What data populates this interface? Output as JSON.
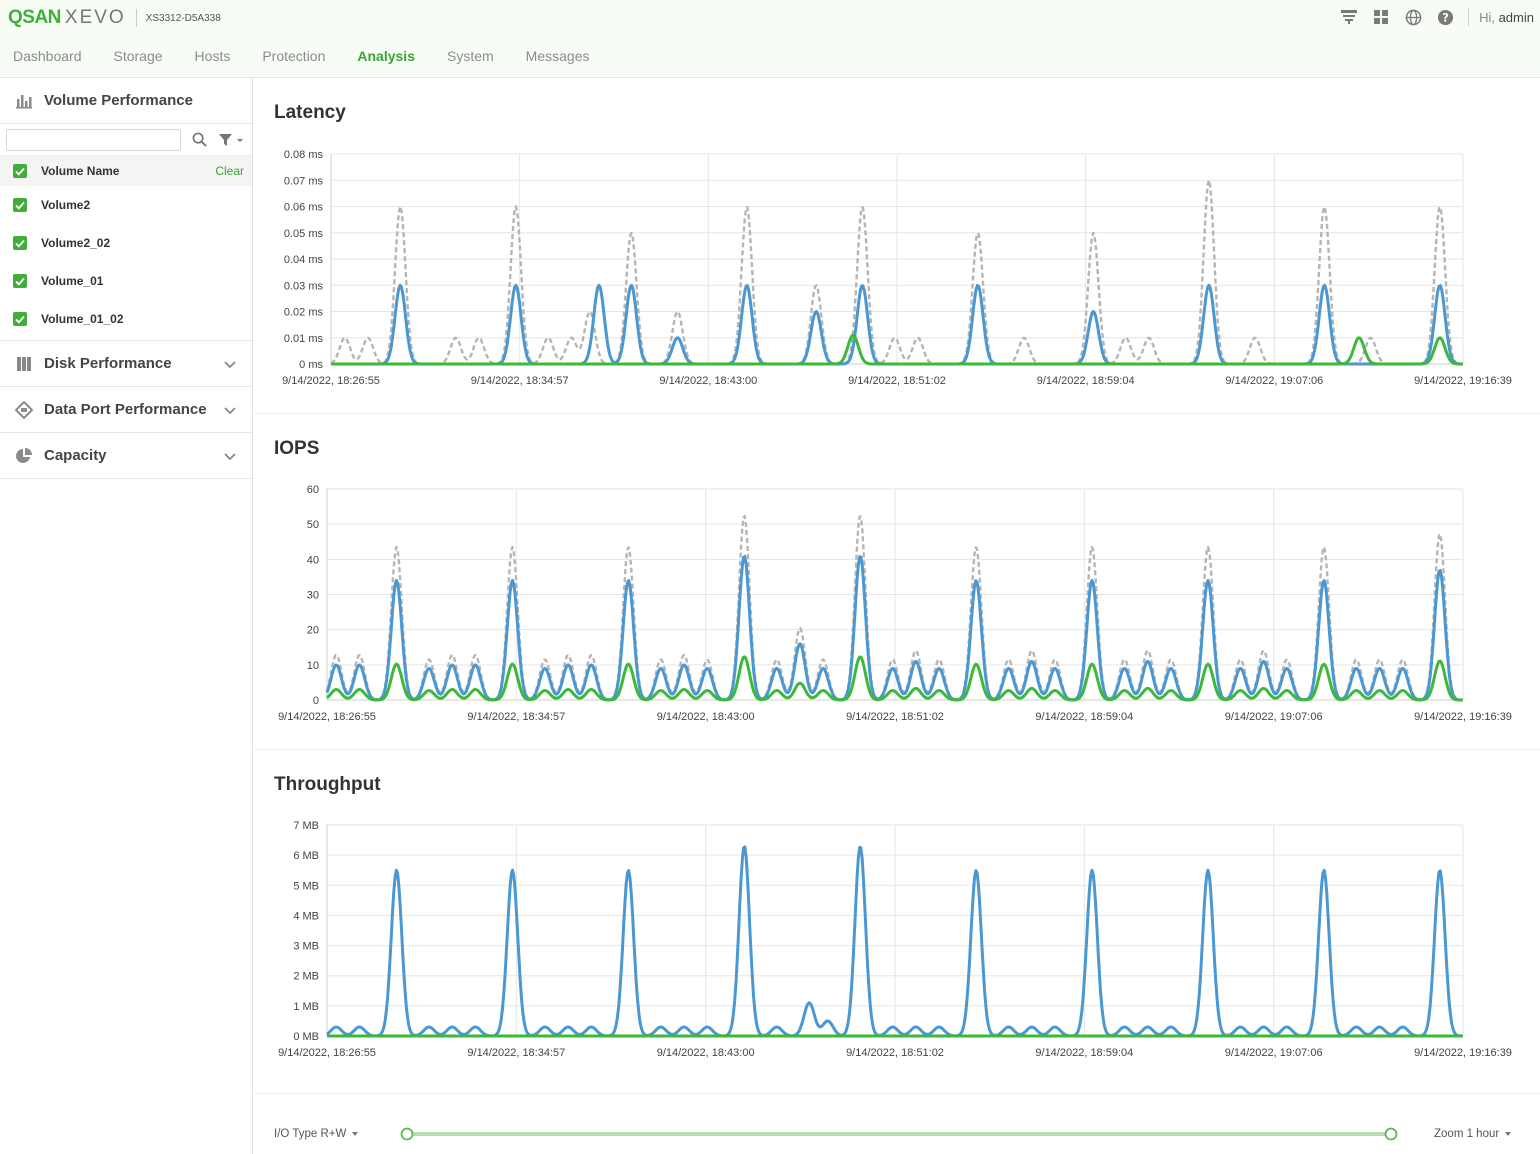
{
  "header": {
    "brand_primary": "QSAN",
    "brand_secondary": "XEVO",
    "model": "XS3312-D5A338",
    "greeting_prefix": "Hi,",
    "user": "admin",
    "icons": [
      "network-icon",
      "grid-icon",
      "globe-icon",
      "help-icon"
    ]
  },
  "nav": {
    "items": [
      "Dashboard",
      "Storage",
      "Hosts",
      "Protection",
      "Analysis",
      "System",
      "Messages"
    ],
    "active": "Analysis"
  },
  "sidebar": {
    "volume_section": {
      "title": "Volume Performance",
      "search_placeholder": "",
      "header_label": "Volume Name",
      "clear_label": "Clear",
      "volumes": [
        "Volume2",
        "Volume2_02",
        "Volume_01",
        "Volume_01_02"
      ]
    },
    "sections": [
      {
        "title": "Disk Performance",
        "icon": "disk-icon"
      },
      {
        "title": "Data Port Performance",
        "icon": "data-port-icon"
      },
      {
        "title": "Capacity",
        "icon": "pie-chart-icon"
      }
    ]
  },
  "footer": {
    "io_type": "I/O Type R+W",
    "zoom": "Zoom 1 hour",
    "range": [
      0,
      1
    ]
  },
  "colors": {
    "accent": "#3aa535",
    "series_gray": "#b5b5b5",
    "series_blue": "#4a97d2",
    "series_green": "#3cb83a"
  },
  "chart_data": [
    {
      "type": "line",
      "title": "Latency",
      "x_tick_labels": [
        "9/14/2022, 18:26:55",
        "9/14/2022, 18:34:57",
        "9/14/2022, 18:43:00",
        "9/14/2022, 18:51:02",
        "9/14/2022, 18:59:04",
        "9/14/2022, 19:07:06",
        "9/14/2022, 19:16:39"
      ],
      "y_tick_labels": [
        "0 ms",
        "0.01 ms",
        "0.02 ms",
        "0.03 ms",
        "0.04 ms",
        "0.05 ms",
        "0.06 ms",
        "0.07 ms",
        "0.08 ms"
      ],
      "ylim": [
        0,
        0.08
      ],
      "xlim": [
        0,
        49
      ],
      "grid": true,
      "series": [
        {
          "style": "dashed",
          "color": "#b5b5b5",
          "peaks": [
            [
              0.6,
              0.01
            ],
            [
              1.6,
              0.01
            ],
            [
              3,
              0.06
            ],
            [
              5.4,
              0.01
            ],
            [
              6.4,
              0.01
            ],
            [
              8,
              0.06
            ],
            [
              9.4,
              0.01
            ],
            [
              10.4,
              0.01
            ],
            [
              11.2,
              0.02
            ],
            [
              13,
              0.05
            ],
            [
              15,
              0.02
            ],
            [
              18,
              0.06
            ],
            [
              21,
              0.03
            ],
            [
              23,
              0.06
            ],
            [
              24.4,
              0.01
            ],
            [
              25.4,
              0.01
            ],
            [
              28,
              0.05
            ],
            [
              30,
              0.01
            ],
            [
              33,
              0.05
            ],
            [
              34.4,
              0.01
            ],
            [
              35.4,
              0.01
            ],
            [
              38,
              0.07
            ],
            [
              40,
              0.01
            ],
            [
              43,
              0.06
            ],
            [
              45,
              0.01
            ],
            [
              48,
              0.06
            ]
          ]
        },
        {
          "style": "solid",
          "color": "#4a97d2",
          "peaks": [
            [
              3,
              0.03
            ],
            [
              8,
              0.03
            ],
            [
              11.6,
              0.03
            ],
            [
              13,
              0.03
            ],
            [
              15,
              0.01
            ],
            [
              18,
              0.03
            ],
            [
              21,
              0.02
            ],
            [
              23,
              0.03
            ],
            [
              28,
              0.03
            ],
            [
              33,
              0.02
            ],
            [
              38,
              0.03
            ],
            [
              43,
              0.03
            ],
            [
              48,
              0.03
            ]
          ]
        },
        {
          "style": "solid",
          "color": "#3cb83a",
          "peaks": [
            [
              22.6,
              0.011
            ],
            [
              44.5,
              0.01
            ],
            [
              48,
              0.01
            ]
          ]
        }
      ]
    },
    {
      "type": "line",
      "title": "IOPS",
      "x_tick_labels": [
        "9/14/2022, 18:26:55",
        "9/14/2022, 18:34:57",
        "9/14/2022, 18:43:00",
        "9/14/2022, 18:51:02",
        "9/14/2022, 18:59:04",
        "9/14/2022, 19:07:06",
        "9/14/2022, 19:16:39"
      ],
      "y_tick_labels": [
        "0",
        "10",
        "20",
        "30",
        "40",
        "50",
        "60"
      ],
      "ylim": [
        0,
        60
      ],
      "xlim": [
        0,
        49
      ],
      "grid": true,
      "series": [
        {
          "style": "dashed",
          "color": "#b5b5b5",
          "scale": 1.28
        },
        {
          "style": "solid",
          "color": "#4a97d2",
          "scale": 1.0
        },
        {
          "style": "solid",
          "color": "#3cb83a",
          "scale": 0.3
        }
      ],
      "base_peaks": [
        [
          0.4,
          10
        ],
        [
          1.4,
          10
        ],
        [
          3,
          34
        ],
        [
          4.4,
          9
        ],
        [
          5.4,
          10
        ],
        [
          6.4,
          10
        ],
        [
          8,
          34
        ],
        [
          9.4,
          9
        ],
        [
          10.4,
          10
        ],
        [
          11.4,
          10
        ],
        [
          13,
          34
        ],
        [
          14.4,
          9
        ],
        [
          15.4,
          10
        ],
        [
          16.4,
          9
        ],
        [
          18,
          41
        ],
        [
          19.4,
          9
        ],
        [
          20.4,
          16
        ],
        [
          21.4,
          9
        ],
        [
          23,
          41
        ],
        [
          24.4,
          9
        ],
        [
          25.4,
          11
        ],
        [
          26.4,
          9
        ],
        [
          28,
          34
        ],
        [
          29.4,
          9
        ],
        [
          30.4,
          11
        ],
        [
          31.4,
          9
        ],
        [
          33,
          34
        ],
        [
          34.4,
          9
        ],
        [
          35.4,
          11
        ],
        [
          36.4,
          9
        ],
        [
          38,
          34
        ],
        [
          39.4,
          9
        ],
        [
          40.4,
          11
        ],
        [
          41.4,
          9
        ],
        [
          43,
          34
        ],
        [
          44.4,
          9
        ],
        [
          45.4,
          9
        ],
        [
          46.4,
          9
        ],
        [
          48,
          37
        ]
      ]
    },
    {
      "type": "line",
      "title": "Throughput",
      "x_tick_labels": [
        "9/14/2022, 18:26:55",
        "9/14/2022, 18:34:57",
        "9/14/2022, 18:43:00",
        "9/14/2022, 18:51:02",
        "9/14/2022, 18:59:04",
        "9/14/2022, 19:07:06",
        "9/14/2022, 19:16:39"
      ],
      "y_tick_labels": [
        "0 MB",
        "1 MB",
        "2 MB",
        "3 MB",
        "4 MB",
        "5 MB",
        "6 MB",
        "7 MB"
      ],
      "ylim": [
        0,
        7
      ],
      "xlim": [
        0,
        49
      ],
      "grid": true,
      "series": [
        {
          "style": "solid",
          "color": "#4a97d2",
          "peaks": [
            [
              0.4,
              0.3
            ],
            [
              1.4,
              0.3
            ],
            [
              3,
              5.5
            ],
            [
              4.4,
              0.3
            ],
            [
              5.4,
              0.3
            ],
            [
              6.4,
              0.3
            ],
            [
              8,
              5.5
            ],
            [
              9.4,
              0.3
            ],
            [
              10.4,
              0.3
            ],
            [
              11.4,
              0.3
            ],
            [
              13,
              5.5
            ],
            [
              14.4,
              0.3
            ],
            [
              15.4,
              0.3
            ],
            [
              16.4,
              0.3
            ],
            [
              18,
              6.3
            ],
            [
              19.4,
              0.3
            ],
            [
              20.8,
              1.1
            ],
            [
              21.6,
              0.5
            ],
            [
              23,
              6.3
            ],
            [
              24.4,
              0.3
            ],
            [
              25.4,
              0.3
            ],
            [
              26.4,
              0.3
            ],
            [
              28,
              5.5
            ],
            [
              29.4,
              0.3
            ],
            [
              30.4,
              0.3
            ],
            [
              31.4,
              0.3
            ],
            [
              33,
              5.5
            ],
            [
              34.4,
              0.3
            ],
            [
              35.4,
              0.3
            ],
            [
              36.4,
              0.3
            ],
            [
              38,
              5.5
            ],
            [
              39.4,
              0.3
            ],
            [
              40.4,
              0.3
            ],
            [
              41.4,
              0.3
            ],
            [
              43,
              5.5
            ],
            [
              44.4,
              0.3
            ],
            [
              45.4,
              0.3
            ],
            [
              46.4,
              0.3
            ],
            [
              48,
              5.5
            ]
          ]
        },
        {
          "style": "solid",
          "color": "#3cb83a",
          "peaks": []
        }
      ]
    }
  ]
}
